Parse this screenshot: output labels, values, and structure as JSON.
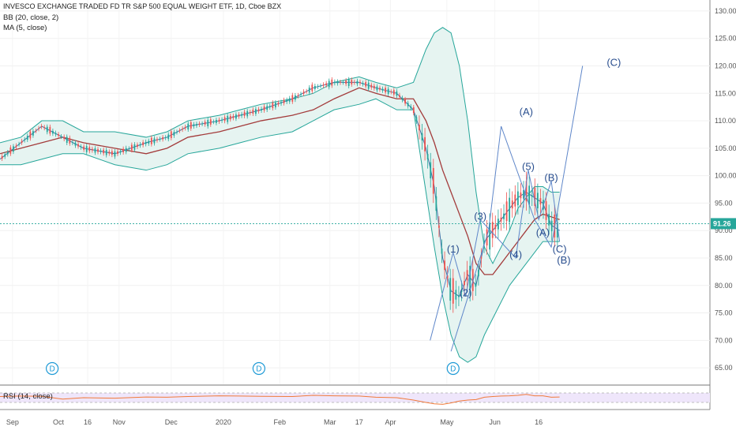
{
  "legend": {
    "title": "INVESCO EXCHANGE TRADED FD TR S&P 500 EQUAL WEIGHT ETF, 1D, Cboe BZX",
    "bb": "BB (20, close, 2)",
    "ma": "MA (5, close)",
    "rsi": "RSI (14, close)"
  },
  "last_price": "91.26",
  "colors": {
    "up": "#26a69a",
    "down": "#ef5350",
    "bb": "#26a69a",
    "bb_fill": "#e6f4f1",
    "basis": "#a33b3b",
    "ma": "#3d6fa5",
    "wave": "#5e86c9",
    "rsi": "#f07a3a",
    "rsi_bg": "#efe6fb",
    "price_tag": "#26a69a"
  },
  "chart_data": {
    "type": "line",
    "y_axis_ticks": [
      "130.00",
      "125.00",
      "120.00",
      "115.00",
      "110.00",
      "105.00",
      "100.00",
      "95.00",
      "90.00",
      "85.00",
      "80.00",
      "75.00",
      "70.00",
      "65.00"
    ],
    "x_axis_ticks": [
      "Sep",
      "Oct",
      "16",
      "Nov",
      "Dec",
      "2020",
      "Feb",
      "Mar",
      "17",
      "Apr",
      "May",
      "Jun",
      "16"
    ],
    "ylim": [
      62,
      132
    ],
    "series": [
      {
        "name": "BB (20, close, 2)",
        "key": "bb_upper",
        "values": [
          [
            0,
            106
          ],
          [
            10,
            107
          ],
          [
            20,
            110
          ],
          [
            30,
            110
          ],
          [
            40,
            108
          ],
          [
            55,
            108
          ],
          [
            70,
            107
          ],
          [
            80,
            108
          ],
          [
            90,
            110
          ],
          [
            105,
            111
          ],
          [
            115,
            112
          ],
          [
            125,
            113
          ],
          [
            140,
            114
          ],
          [
            150,
            115
          ],
          [
            160,
            117
          ],
          [
            172,
            118
          ],
          [
            180,
            117
          ],
          [
            190,
            116
          ],
          [
            198,
            117
          ],
          [
            204,
            123
          ],
          [
            208,
            126
          ],
          [
            212,
            127
          ],
          [
            216,
            126
          ],
          [
            220,
            120
          ],
          [
            224,
            110
          ],
          [
            228,
            97
          ],
          [
            232,
            87
          ],
          [
            236,
            84
          ],
          [
            240,
            87
          ],
          [
            244,
            90
          ],
          [
            248,
            94
          ],
          [
            252,
            96
          ],
          [
            256,
            98
          ],
          [
            260,
            98
          ],
          [
            264,
            97
          ],
          [
            268,
            97
          ]
        ]
      },
      {
        "name": "",
        "key": "bb_basis",
        "values": [
          [
            0,
            104
          ],
          [
            20,
            106
          ],
          [
            30,
            107
          ],
          [
            40,
            106
          ],
          [
            55,
            105
          ],
          [
            70,
            104
          ],
          [
            80,
            105
          ],
          [
            90,
            107
          ],
          [
            105,
            108
          ],
          [
            115,
            109
          ],
          [
            125,
            110
          ],
          [
            140,
            111
          ],
          [
            150,
            112
          ],
          [
            160,
            114
          ],
          [
            172,
            116
          ],
          [
            180,
            115
          ],
          [
            190,
            114
          ],
          [
            198,
            114
          ],
          [
            204,
            110
          ],
          [
            208,
            106
          ],
          [
            212,
            101
          ],
          [
            216,
            97
          ],
          [
            220,
            93
          ],
          [
            224,
            89
          ],
          [
            228,
            84
          ],
          [
            232,
            82
          ],
          [
            236,
            82
          ],
          [
            240,
            84
          ],
          [
            244,
            86
          ],
          [
            248,
            88
          ],
          [
            252,
            90
          ],
          [
            256,
            92
          ],
          [
            260,
            93
          ],
          [
            264,
            92.5
          ],
          [
            268,
            92
          ]
        ]
      },
      {
        "name": "",
        "key": "bb_lower",
        "values": [
          [
            0,
            102
          ],
          [
            10,
            102
          ],
          [
            20,
            103
          ],
          [
            30,
            104
          ],
          [
            40,
            104
          ],
          [
            55,
            102
          ],
          [
            70,
            101
          ],
          [
            80,
            102
          ],
          [
            90,
            104
          ],
          [
            105,
            105
          ],
          [
            115,
            106
          ],
          [
            125,
            107
          ],
          [
            140,
            108
          ],
          [
            150,
            110
          ],
          [
            160,
            112
          ],
          [
            172,
            113
          ],
          [
            180,
            114
          ],
          [
            190,
            112
          ],
          [
            198,
            112
          ],
          [
            204,
            97
          ],
          [
            208,
            87
          ],
          [
            212,
            78
          ],
          [
            216,
            71
          ],
          [
            220,
            67
          ],
          [
            224,
            66
          ],
          [
            228,
            67
          ],
          [
            232,
            71
          ],
          [
            236,
            74
          ],
          [
            240,
            77
          ],
          [
            244,
            80
          ],
          [
            248,
            82
          ],
          [
            252,
            84
          ],
          [
            256,
            86
          ],
          [
            260,
            88
          ],
          [
            264,
            88
          ],
          [
            268,
            88
          ]
        ]
      },
      {
        "name": "MA (5, close)",
        "key": "ma",
        "values": [
          [
            0,
            103
          ],
          [
            10,
            106
          ],
          [
            20,
            109
          ],
          [
            30,
            107
          ],
          [
            40,
            105
          ],
          [
            55,
            104
          ],
          [
            70,
            106
          ],
          [
            80,
            107
          ],
          [
            90,
            109
          ],
          [
            105,
            110
          ],
          [
            115,
            111
          ],
          [
            125,
            112
          ],
          [
            140,
            114
          ],
          [
            150,
            116
          ],
          [
            160,
            117
          ],
          [
            172,
            117
          ],
          [
            180,
            116
          ],
          [
            190,
            115
          ],
          [
            198,
            112
          ],
          [
            204,
            105
          ],
          [
            208,
            98
          ],
          [
            212,
            85
          ],
          [
            216,
            79
          ],
          [
            220,
            78
          ],
          [
            224,
            82
          ],
          [
            228,
            80
          ],
          [
            232,
            88
          ],
          [
            236,
            90
          ],
          [
            240,
            92
          ],
          [
            244,
            94
          ],
          [
            248,
            96
          ],
          [
            252,
            97
          ],
          [
            256,
            96
          ],
          [
            260,
            95
          ],
          [
            264,
            91
          ],
          [
            268,
            90
          ]
        ]
      }
    ],
    "wave_path": [
      [
        216,
        68
      ],
      [
        234,
        90
      ],
      [
        240,
        109
      ],
      [
        256,
        92
      ],
      [
        264,
        87
      ],
      [
        279,
        120
      ]
    ],
    "wave_labels": [
      {
        "text": "(1)",
        "x": 217,
        "y": 86
      },
      {
        "text": "(2)",
        "x": 223,
        "y": 78
      },
      {
        "text": "(3)",
        "x": 230,
        "y": 92
      },
      {
        "text": "(4)",
        "x": 247,
        "y": 85
      },
      {
        "text": "(5)",
        "x": 253,
        "y": 101
      },
      {
        "text": "(A)",
        "x": 252,
        "y": 111
      },
      {
        "text": "(B)",
        "x": 264,
        "y": 99
      },
      {
        "text": "(A)",
        "x": 260,
        "y": 89
      },
      {
        "text": "(C)",
        "x": 268,
        "y": 86
      },
      {
        "text": "(B)",
        "x": 270,
        "y": 84
      },
      {
        "text": "(C)",
        "x": 294,
        "y": 120
      }
    ],
    "dividends": [
      {
        "text": "D",
        "x": 25
      },
      {
        "text": "D",
        "x": 124
      },
      {
        "text": "D",
        "x": 217
      }
    ],
    "rsi": {
      "upper": 70,
      "lower": 30,
      "values": [
        [
          0,
          55
        ],
        [
          10,
          57
        ],
        [
          20,
          56
        ],
        [
          30,
          44
        ],
        [
          40,
          50
        ],
        [
          55,
          48
        ],
        [
          70,
          53
        ],
        [
          80,
          52
        ],
        [
          90,
          55
        ],
        [
          105,
          58
        ],
        [
          115,
          57
        ],
        [
          125,
          56
        ],
        [
          140,
          55
        ],
        [
          150,
          60
        ],
        [
          160,
          58
        ],
        [
          172,
          57
        ],
        [
          180,
          52
        ],
        [
          190,
          50
        ],
        [
          198,
          40
        ],
        [
          204,
          30
        ],
        [
          208,
          24
        ],
        [
          212,
          22
        ],
        [
          216,
          28
        ],
        [
          220,
          36
        ],
        [
          224,
          40
        ],
        [
          228,
          42
        ],
        [
          232,
          52
        ],
        [
          236,
          55
        ],
        [
          240,
          57
        ],
        [
          244,
          58
        ],
        [
          248,
          60
        ],
        [
          252,
          64
        ],
        [
          256,
          58
        ],
        [
          260,
          58
        ],
        [
          264,
          52
        ],
        [
          268,
          53
        ]
      ]
    }
  }
}
